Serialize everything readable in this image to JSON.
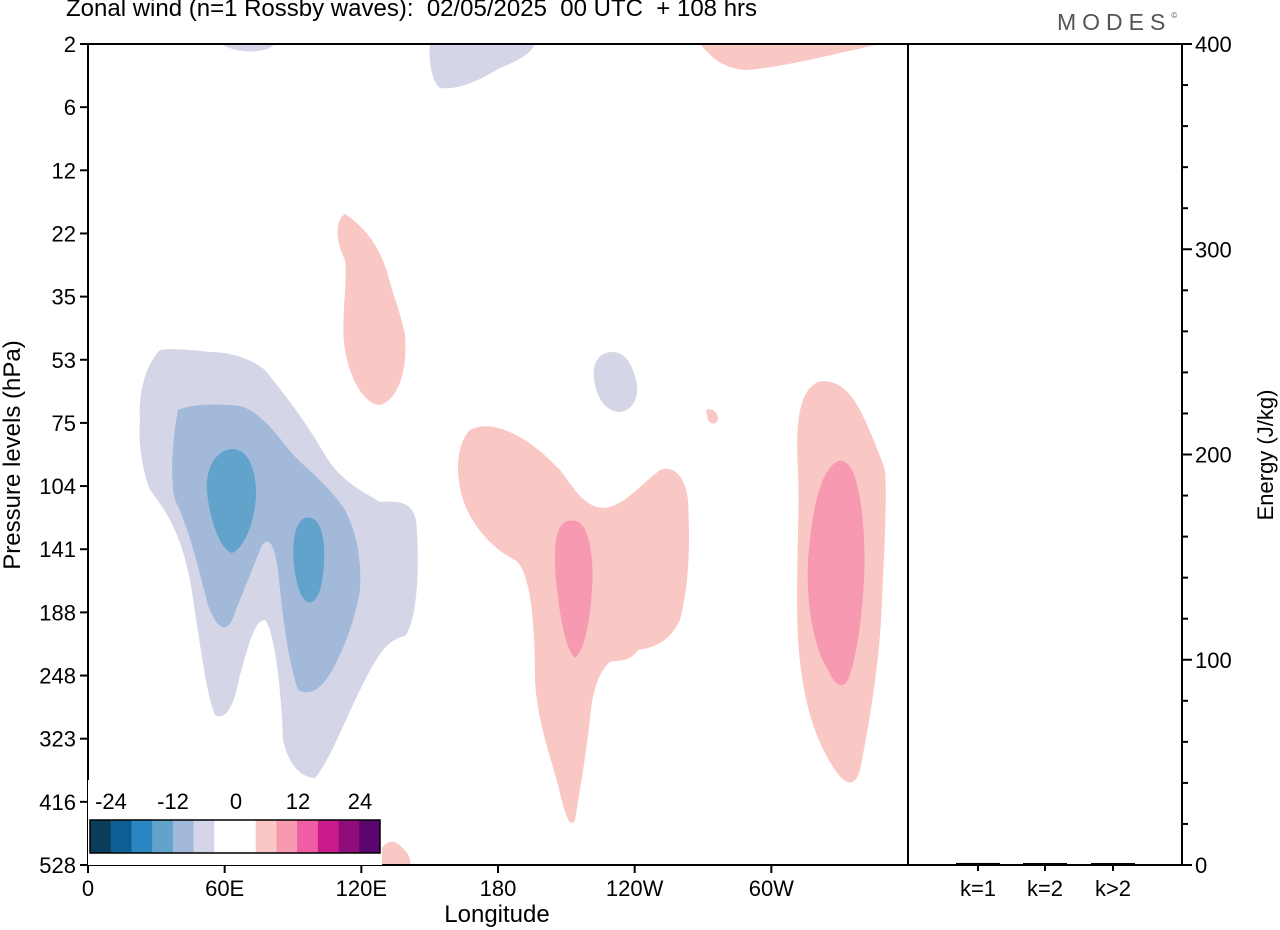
{
  "title": "Zonal wind (n=1 Rossby waves):  02/05/2025  00 UTC  + 108 hrs",
  "logo": "MODES",
  "logo_mark": "©",
  "colors": {
    "neg4": "#0b3c5a",
    "neg3": "#0d5e93",
    "neg2": "#2a86c0",
    "neg1": "#62a3cc",
    "neg0b": "#a2b9d9",
    "neg0": "#d4d6e8",
    "zero": "#ffffff",
    "pos0": "#f9c8c4",
    "pos1": "#f799b0",
    "pos2": "#ef5da5",
    "pos3": "#c91b8c",
    "pos4": "#8e0d7a",
    "pos5": "#5a056e"
  },
  "chart_data": [
    {
      "type": "heatmap",
      "title": "Zonal wind (n=1 Rossby waves):  02/05/2025  00 UTC  + 108 hrs",
      "xlabel": "Longitude",
      "ylabel": "Pressure levels (hPa)",
      "x_ticks": [
        "0",
        "60E",
        "120E",
        "180",
        "120W",
        "60W"
      ],
      "x_tick_degrees": [
        0,
        60,
        120,
        180,
        240,
        300
      ],
      "xlim": [
        0,
        360
      ],
      "y_ticks": [
        "2",
        "6",
        "12",
        "22",
        "35",
        "53",
        "75",
        "104",
        "141",
        "188",
        "248",
        "323",
        "416",
        "528"
      ],
      "y_axis": "pressure levels, 528 at bottom to 2 at top",
      "colorbar": {
        "labels": [
          "-24",
          "-12",
          "0",
          "12",
          "24"
        ],
        "levels": [
          -30,
          -25,
          -20,
          -15,
          -10,
          -5,
          0,
          5,
          10,
          15,
          20,
          25,
          30
        ],
        "placement": "bottom-left"
      },
      "features": [
        {
          "name": "negative anomaly",
          "lon_range": [
            20,
            145
          ],
          "level_range": [
            "53",
            "416"
          ],
          "min_value": -15
        },
        {
          "name": "negative anomaly (top)",
          "lon_range": [
            145,
            195
          ],
          "level_range": [
            "2",
            "6"
          ],
          "min_value": -5
        },
        {
          "name": "negative anomaly",
          "lon_range": [
            222,
            240
          ],
          "level_range": [
            "53",
            "75"
          ],
          "min_value": -5
        },
        {
          "name": "positive anomaly",
          "lon_range": [
            108,
            130
          ],
          "level_range": [
            "22",
            "75"
          ],
          "max_value": 5
        },
        {
          "name": "positive anomaly",
          "lon_range": [
            165,
            265
          ],
          "level_range": [
            "75",
            "416"
          ],
          "max_value": 10
        },
        {
          "name": "positive anomaly",
          "lon_range": [
            310,
            350
          ],
          "level_range": [
            "53",
            "416"
          ],
          "max_value": 10
        },
        {
          "name": "positive anomaly (top)",
          "lon_range": [
            270,
            345
          ],
          "level_range": [
            "2",
            "6"
          ],
          "max_value": 5
        }
      ]
    },
    {
      "type": "bar",
      "ylabel": "Energy (J/kg)",
      "categories": [
        "k=1",
        "k=2",
        "k>2"
      ],
      "values": [
        1,
        0.3,
        0.2
      ],
      "ylim": [
        0,
        400
      ],
      "y_ticks": [
        "0",
        "100",
        "200",
        "300",
        "400"
      ],
      "y_axis_side": "right"
    }
  ]
}
